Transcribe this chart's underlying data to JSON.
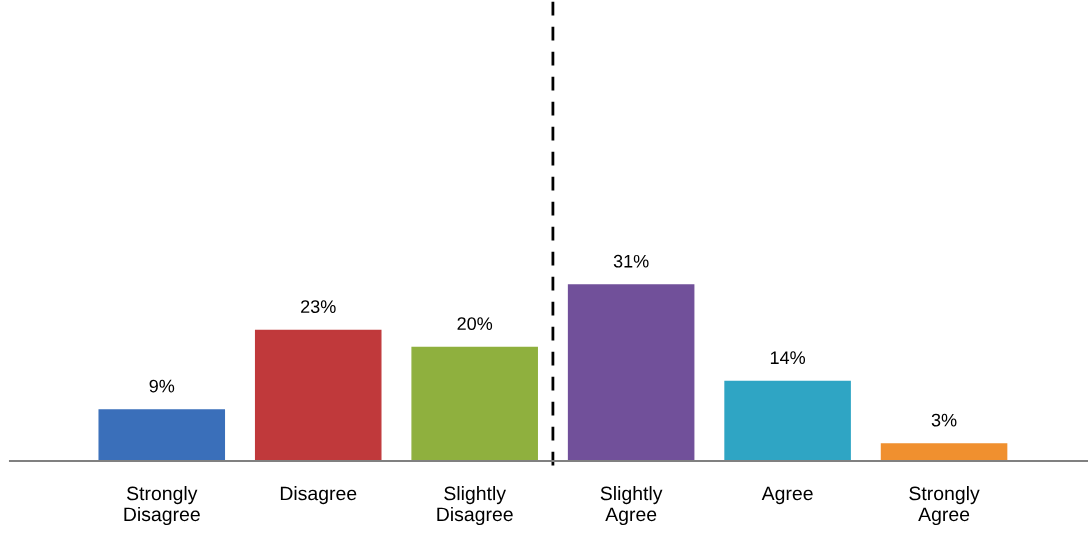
{
  "chart_data": {
    "type": "bar",
    "categories": [
      "Strongly\nDisagree",
      "Disagree",
      "Slightly\nDisagree",
      "Slightly\nAgree",
      "Agree",
      "Strongly\nAgree"
    ],
    "values": [
      9,
      23,
      20,
      31,
      14,
      3
    ],
    "value_labels": [
      "9%",
      "23%",
      "20%",
      "31%",
      "14%",
      "3%"
    ],
    "colors": [
      "#3a6fba",
      "#c0393b",
      "#8fb03e",
      "#71509a",
      "#2fa5c4",
      "#f0902f"
    ],
    "grid": false,
    "legend": false
  }
}
